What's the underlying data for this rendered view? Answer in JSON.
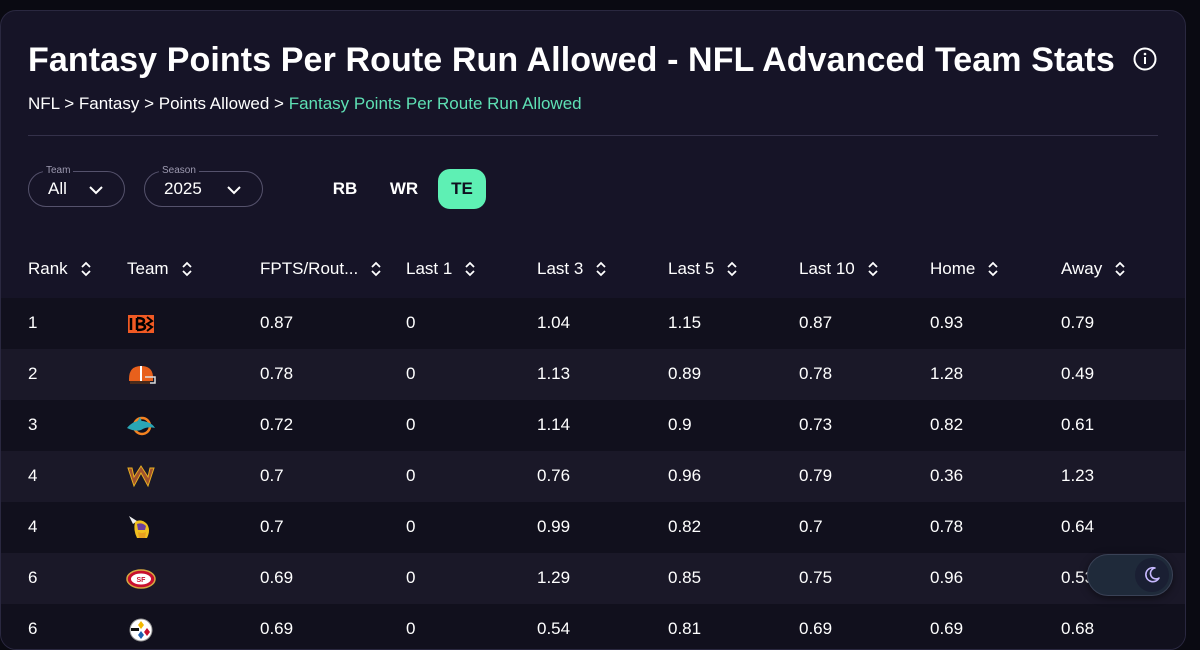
{
  "page": {
    "title": "Fantasy Points Per Route Run Allowed - NFL Advanced Team Stats",
    "breadcrumb": [
      {
        "label": "NFL",
        "sep": " > "
      },
      {
        "label": "Fantasy",
        "sep": " > "
      },
      {
        "label": "Points Allowed",
        "sep": " > "
      },
      {
        "label": "Fantasy Points Per Route Run Allowed",
        "sep": ""
      }
    ]
  },
  "filters": {
    "team": {
      "legend": "Team",
      "value": "All"
    },
    "season": {
      "legend": "Season",
      "value": "2025"
    }
  },
  "positions": [
    {
      "label": "RB",
      "active": false
    },
    {
      "label": "WR",
      "active": false
    },
    {
      "label": "TE",
      "active": true
    }
  ],
  "table": {
    "columns": [
      "Rank",
      "Team",
      "FPTS/Rout...",
      "Last 1",
      "Last 3",
      "Last 5",
      "Last 10",
      "Home",
      "Away"
    ],
    "rows": [
      {
        "rank": "1",
        "team_logo": "bengals-logo",
        "fpts": "0.87",
        "last1": "0",
        "last3": "1.04",
        "last5": "1.15",
        "last10": "0.87",
        "home": "0.93",
        "away": "0.79"
      },
      {
        "rank": "2",
        "team_logo": "browns-logo",
        "fpts": "0.78",
        "last1": "0",
        "last3": "1.13",
        "last5": "0.89",
        "last10": "0.78",
        "home": "1.28",
        "away": "0.49"
      },
      {
        "rank": "3",
        "team_logo": "dolphins-logo",
        "fpts": "0.72",
        "last1": "0",
        "last3": "1.14",
        "last5": "0.9",
        "last10": "0.73",
        "home": "0.82",
        "away": "0.61"
      },
      {
        "rank": "4",
        "team_logo": "commanders-logo",
        "fpts": "0.7",
        "last1": "0",
        "last3": "0.76",
        "last5": "0.96",
        "last10": "0.79",
        "home": "0.36",
        "away": "1.23"
      },
      {
        "rank": "4",
        "team_logo": "vikings-logo",
        "fpts": "0.7",
        "last1": "0",
        "last3": "0.99",
        "last5": "0.82",
        "last10": "0.7",
        "home": "0.78",
        "away": "0.64"
      },
      {
        "rank": "6",
        "team_logo": "49ers-logo",
        "fpts": "0.69",
        "last1": "0",
        "last3": "1.29",
        "last5": "0.85",
        "last10": "0.75",
        "home": "0.96",
        "away": "0.53"
      },
      {
        "rank": "6",
        "team_logo": "steelers-logo",
        "fpts": "0.69",
        "last1": "0",
        "last3": "0.54",
        "last5": "0.81",
        "last10": "0.69",
        "home": "0.69",
        "away": "0.68"
      }
    ]
  },
  "colors": {
    "accent": "#5ef0b4",
    "breadcrumb_active": "#5ee0b4",
    "panel": "#161427",
    "row_band": "#1a1828"
  },
  "icons": {
    "info": "info-icon",
    "sort": "sort-icon",
    "chevron": "chevron-down-icon",
    "theme": "moon-icon"
  }
}
